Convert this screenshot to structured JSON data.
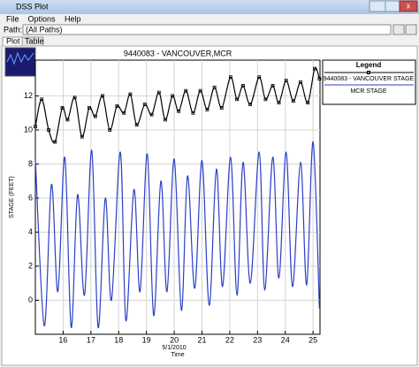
{
  "window": {
    "title": "DSS Plot",
    "menu": [
      "File",
      "Options",
      "Help"
    ],
    "path_label": "Path:",
    "path_value": "(All Paths)",
    "tabs": [
      "Plot",
      "Table"
    ]
  },
  "chart_data": {
    "type": "line",
    "title": "9440083 - VANCOUVER,MCR",
    "ylabel": "STAGE (FEET)",
    "xlabel": "Time",
    "annotation": "5/1/2010",
    "legend_title": "Legend",
    "legend": "right",
    "grid": true,
    "xlim": [
      15,
      25.25
    ],
    "xticks": [
      16,
      17,
      18,
      19,
      20,
      21,
      22,
      23,
      24,
      25
    ],
    "ylim": [
      -2,
      14.1
    ],
    "yticks": [
      0,
      2,
      4,
      6,
      8,
      10,
      12
    ],
    "series": [
      {
        "name": "9440083 - VANCOUVER STAGE",
        "color": "#000000",
        "markers": true,
        "x": [
          15.0,
          15.23,
          15.48,
          15.71,
          15.97,
          16.16,
          16.42,
          16.68,
          16.94,
          17.16,
          17.42,
          17.68,
          17.94,
          18.19,
          18.42,
          18.65,
          18.94,
          19.19,
          19.45,
          19.68,
          19.94,
          20.16,
          20.42,
          20.68,
          20.94,
          21.19,
          21.45,
          21.71,
          22.03,
          22.26,
          22.48,
          22.74,
          23.06,
          23.29,
          23.55,
          23.77,
          24.03,
          24.29,
          24.55,
          24.81,
          25.06,
          25.23
        ],
        "values": [
          10.2,
          11.8,
          10.0,
          9.3,
          11.3,
          10.6,
          11.9,
          9.6,
          11.3,
          10.8,
          12.0,
          10.0,
          11.4,
          11.0,
          12.1,
          10.3,
          11.5,
          10.9,
          12.2,
          10.6,
          12.0,
          11.1,
          12.3,
          11.0,
          12.3,
          11.2,
          12.5,
          11.3,
          13.1,
          11.8,
          12.6,
          11.5,
          13.1,
          11.8,
          12.6,
          11.6,
          12.9,
          11.7,
          12.8,
          11.6,
          13.6,
          13.0
        ]
      },
      {
        "name": "MCR STAGE",
        "color": "#2a3fc8",
        "markers": false,
        "x": [
          15.0,
          15.32,
          15.58,
          15.81,
          16.06,
          16.29,
          16.52,
          16.77,
          17.03,
          17.26,
          17.52,
          17.74,
          18.06,
          18.26,
          18.55,
          18.77,
          19.03,
          19.26,
          19.52,
          19.74,
          20.0,
          20.26,
          20.48,
          20.74,
          21.0,
          21.26,
          21.52,
          21.74,
          22.03,
          22.26,
          22.48,
          22.74,
          23.06,
          23.26,
          23.55,
          23.77,
          24.03,
          24.26,
          24.55,
          24.77,
          25.0,
          25.23
        ],
        "values": [
          8.3,
          -1.5,
          6.8,
          0.5,
          8.4,
          -1.6,
          6.2,
          0.3,
          8.8,
          -1.6,
          6.0,
          0.0,
          8.7,
          -1.2,
          6.5,
          0.5,
          8.6,
          -0.9,
          7.0,
          0.5,
          8.3,
          -0.6,
          7.3,
          0.7,
          8.2,
          -0.3,
          7.7,
          0.8,
          8.4,
          0.3,
          8.1,
          1.0,
          8.7,
          0.6,
          8.4,
          1.3,
          8.7,
          0.8,
          8.1,
          0.9,
          9.3,
          -0.5
        ]
      }
    ]
  }
}
